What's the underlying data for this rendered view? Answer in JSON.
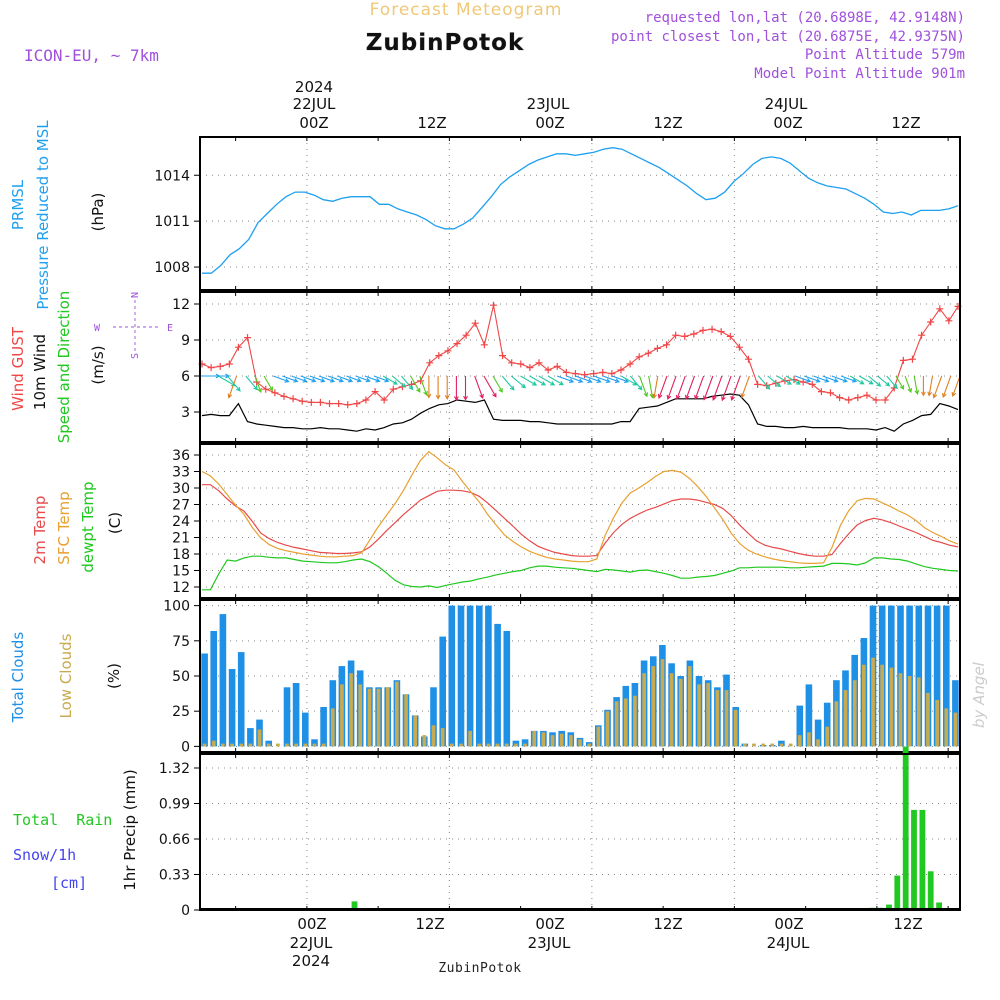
{
  "header": {
    "subtitle": "Forecast Meteogram",
    "station": "ZubinPotok",
    "model": "ICON-EU, ~ 7km",
    "info": [
      "requested lon,lat (20.6898E, 42.9148N)",
      "point closest lon,lat (20.6875E, 42.9375N)",
      "Point Altitude 579m",
      "Model Point Altitude 901m"
    ],
    "watermark": "by Angel",
    "footer_name": "ZubinPotok"
  },
  "time_axis": {
    "top_year": "2024",
    "dates": [
      "22JUL",
      "23JUL",
      "24JUL"
    ],
    "hour_labels": [
      "00Z",
      "12Z",
      "00Z",
      "12Z",
      "00Z",
      "12Z"
    ],
    "bottom_year": "2024"
  },
  "panel_labels": {
    "pressure": [
      "PRMSL",
      "Pressure Reduced to MSL",
      "(hPa)"
    ],
    "wind": [
      "Wind GUST",
      "10m Wind",
      "Speed and Direction",
      "(m/s)"
    ],
    "compass": [
      "N",
      "E",
      "S",
      "W"
    ],
    "temp": [
      "2m Temp",
      "SFC Temp",
      "dewpt Temp",
      "(C)"
    ],
    "clouds": [
      "Total Clouds",
      "Low Clouds",
      "(%)"
    ],
    "precip": [
      "Total  Rain",
      "Snow/1h",
      "[cm]",
      "1hr Precip (mm)"
    ]
  },
  "colors": {
    "pressure": "#1ea0f0",
    "gust": "#f04646",
    "wind": "#000000",
    "t2m": "#e84a4a",
    "sfc": "#e8a030",
    "dew": "#20c820",
    "total_clouds": "#1e90e6",
    "low_clouds": "#c8aa50",
    "rain": "#22c822",
    "title": "#f0c878",
    "info": "#a050dc",
    "snow": "#4444ee"
  },
  "chart_data": [
    {
      "type": "line",
      "name": "pressure",
      "title": "PRMSL Pressure Reduced to MSL",
      "ylabel": "(hPa)",
      "ylim": [
        1006.5,
        1016.5
      ],
      "yticks": [
        1008,
        1011,
        1014
      ],
      "x_start_hour": -9,
      "x_end_hour": 55,
      "values": [
        1007.6,
        1007.6,
        1008.1,
        1008.8,
        1009.2,
        1009.8,
        1010.9,
        1011.5,
        1012.1,
        1012.6,
        1012.9,
        1012.9,
        1012.7,
        1012.4,
        1012.3,
        1012.5,
        1012.6,
        1012.6,
        1012.6,
        1012.1,
        1012.1,
        1011.8,
        1011.6,
        1011.4,
        1011.1,
        1010.7,
        1010.5,
        1010.5,
        1010.8,
        1011.2,
        1011.9,
        1012.6,
        1013.4,
        1013.9,
        1014.3,
        1014.7,
        1015.0,
        1015.2,
        1015.4,
        1015.4,
        1015.3,
        1015.4,
        1015.5,
        1015.7,
        1015.8,
        1015.7,
        1015.4,
        1015.1,
        1014.8,
        1014.5,
        1014.1,
        1013.7,
        1013.3,
        1012.8,
        1012.4,
        1012.5,
        1012.9,
        1013.6,
        1014.1,
        1014.7,
        1015.1,
        1015.2,
        1015.1,
        1014.8,
        1014.3,
        1013.8,
        1013.5,
        1013.3,
        1013.2,
        1013.1,
        1012.8,
        1012.5,
        1012.1,
        1011.6,
        1011.5,
        1011.6,
        1011.4,
        1011.7,
        1011.7,
        1011.7,
        1011.8,
        1012.0
      ]
    },
    {
      "type": "line",
      "name": "wind",
      "ylabel": "(m/s)",
      "ylim": [
        0.5,
        13
      ],
      "yticks": [
        3,
        6,
        9,
        12
      ],
      "x_start_hour": -9,
      "x_end_hour": 55,
      "series": [
        {
          "name": "Wind GUST",
          "values": [
            7.0,
            6.7,
            6.8,
            7.0,
            8.4,
            9.2,
            5.5,
            4.9,
            4.6,
            4.3,
            4.1,
            3.9,
            3.8,
            3.8,
            3.7,
            3.7,
            3.6,
            3.7,
            4.0,
            4.7,
            4.0,
            4.9,
            5.1,
            5.3,
            5.6,
            7.1,
            7.7,
            8.1,
            8.7,
            9.4,
            10.4,
            8.6,
            11.9,
            7.7,
            7.1,
            7.0,
            6.7,
            7.1,
            6.5,
            6.8,
            6.3,
            6.2,
            6.1,
            6.2,
            6.3,
            6.2,
            6.5,
            7.0,
            7.6,
            7.9,
            8.3,
            8.6,
            9.4,
            9.3,
            9.5,
            9.8,
            9.9,
            9.7,
            9.3,
            8.4,
            7.4,
            5.3,
            5.2,
            5.4,
            5.6,
            5.7,
            5.5,
            5.3,
            4.7,
            4.6,
            4.2,
            4.0,
            4.2,
            4.4,
            4.0,
            4.0,
            5.0,
            7.3,
            7.4,
            9.4,
            10.5,
            11.6,
            10.6,
            11.8
          ]
        },
        {
          "name": "10m Wind",
          "values": [
            2.7,
            2.8,
            2.7,
            2.7,
            3.7,
            2.2,
            2.0,
            1.9,
            1.8,
            1.7,
            1.7,
            1.6,
            1.6,
            1.7,
            1.6,
            1.6,
            1.5,
            1.4,
            1.6,
            1.5,
            1.7,
            2.0,
            2.1,
            2.4,
            2.9,
            3.3,
            3.6,
            3.7,
            4.0,
            3.9,
            3.8,
            4.0,
            2.4,
            2.3,
            2.3,
            2.3,
            2.2,
            2.2,
            2.1,
            2.0,
            2.0,
            2.0,
            2.0,
            2.0,
            2.0,
            2.0,
            2.2,
            2.2,
            3.3,
            3.4,
            3.5,
            3.8,
            4.1,
            4.1,
            4.1,
            4.1,
            4.3,
            4.4,
            4.5,
            4.4,
            3.6,
            2.0,
            1.8,
            1.8,
            1.7,
            1.7,
            1.8,
            1.7,
            1.7,
            1.7,
            1.7,
            1.6,
            1.6,
            1.6,
            1.5,
            1.7,
            1.4,
            2.0,
            2.3,
            2.7,
            2.8,
            3.7,
            3.5,
            3.2
          ]
        }
      ],
      "wind_dir_deg": [
        270,
        270,
        300,
        320,
        20,
        320,
        340,
        330,
        290,
        290,
        290,
        290,
        290,
        290,
        290,
        290,
        290,
        290,
        290,
        290,
        300,
        310,
        320,
        330,
        340,
        0,
        0,
        0,
        0,
        0,
        340,
        330,
        330,
        320,
        310,
        300,
        300,
        300,
        300,
        290,
        290,
        290,
        290,
        290,
        290,
        290,
        300,
        320,
        340,
        350,
        10,
        20,
        20,
        20,
        20,
        20,
        20,
        20,
        20,
        20,
        20,
        320,
        310,
        300,
        300,
        290,
        290,
        290,
        290,
        290,
        290,
        300,
        300,
        310,
        310,
        320,
        330,
        340,
        350,
        0,
        10,
        20,
        20,
        20
      ]
    },
    {
      "type": "line",
      "name": "temperature",
      "ylabel": "(C)",
      "ylim": [
        10,
        38
      ],
      "yticks": [
        12,
        15,
        18,
        21,
        24,
        27,
        30,
        33,
        36
      ],
      "x_start_hour": -9,
      "x_end_hour": 55,
      "series": [
        {
          "name": "2m Temp",
          "values": [
            30.6,
            30.6,
            29.5,
            28.0,
            26.7,
            25.8,
            23.9,
            21.8,
            20.8,
            20.1,
            19.6,
            19.2,
            18.9,
            18.6,
            18.3,
            18.2,
            18.1,
            18.1,
            18.2,
            18.4,
            19.3,
            20.7,
            22.3,
            23.7,
            25.2,
            26.5,
            27.8,
            28.6,
            29.4,
            29.6,
            29.6,
            29.5,
            29.2,
            28.5,
            27.3,
            25.9,
            24.5,
            23.1,
            21.6,
            20.4,
            19.4,
            18.8,
            18.3,
            18.0,
            17.7,
            17.6,
            17.6,
            17.7,
            20.0,
            21.9,
            23.4,
            24.5,
            25.3,
            26.0,
            26.5,
            27.1,
            27.7,
            28.0,
            28.0,
            27.8,
            27.4,
            27.0,
            26.3,
            25.0,
            23.3,
            21.8,
            20.4,
            19.6,
            19.2,
            18.9,
            18.5,
            18.1,
            17.8,
            17.6,
            17.6,
            17.9,
            19.9,
            21.7,
            23.3,
            24.1,
            24.5,
            24.2,
            23.7,
            23.1,
            22.5,
            21.9,
            21.2,
            20.5,
            20.1,
            19.6,
            19.3
          ]
        },
        {
          "name": "SFC Temp",
          "values": [
            33.0,
            32.2,
            30.7,
            28.8,
            26.9,
            25.2,
            22.8,
            20.9,
            19.7,
            19.0,
            18.6,
            18.3,
            18.0,
            17.8,
            17.6,
            17.5,
            17.5,
            17.6,
            17.7,
            18.2,
            20.6,
            23.0,
            25.1,
            27.2,
            29.6,
            32.4,
            35.0,
            36.6,
            35.5,
            34.2,
            33.3,
            31.2,
            29.3,
            27.5,
            25.2,
            23.3,
            21.5,
            20.3,
            19.3,
            18.5,
            17.9,
            17.4,
            17.1,
            16.9,
            16.7,
            16.6,
            16.6,
            17.1,
            21.4,
            24.6,
            27.3,
            29.1,
            30.0,
            31.0,
            32.1,
            33.0,
            33.2,
            32.9,
            31.8,
            30.3,
            28.5,
            26.4,
            24.3,
            21.8,
            19.9,
            18.7,
            18.0,
            17.5,
            17.1,
            16.8,
            16.6,
            16.4,
            16.3,
            16.3,
            16.4,
            19.2,
            23.2,
            25.9,
            27.7,
            28.1,
            28.0,
            27.3,
            26.6,
            25.8,
            25.1,
            24.1,
            22.8,
            21.9,
            21.2,
            20.4,
            19.8
          ]
        },
        {
          "name": "dewpt Temp",
          "values": [
            11.5,
            11.5,
            14.4,
            16.9,
            16.7,
            17.3,
            17.6,
            17.6,
            17.4,
            17.3,
            17.3,
            17.0,
            16.7,
            16.6,
            16.5,
            16.4,
            16.4,
            16.6,
            16.9,
            17.1,
            16.6,
            15.7,
            14.5,
            13.2,
            12.4,
            12.1,
            12.0,
            12.2,
            11.9,
            12.3,
            12.6,
            12.9,
            13.1,
            13.5,
            13.8,
            14.2,
            14.5,
            14.8,
            15.0,
            15.5,
            15.8,
            15.8,
            15.6,
            15.5,
            15.4,
            15.2,
            15.0,
            14.8,
            15.2,
            15.1,
            14.9,
            14.7,
            15.0,
            15.1,
            14.8,
            14.5,
            14.1,
            13.6,
            13.6,
            13.8,
            13.9,
            14.1,
            14.5,
            14.9,
            15.5,
            15.5,
            15.6,
            15.6,
            15.6,
            15.6,
            15.5,
            15.5,
            15.6,
            15.7,
            15.8,
            16.3,
            16.3,
            16.2,
            16.0,
            16.4,
            17.3,
            17.3,
            17.1,
            17.0,
            16.7,
            16.2,
            15.7,
            15.4,
            15.2,
            15.0,
            14.9
          ]
        }
      ]
    },
    {
      "type": "bar",
      "name": "clouds",
      "ylabel": "(%)",
      "ylim": [
        -4,
        104
      ],
      "yticks": [
        0,
        25,
        50,
        75,
        100
      ],
      "x_start_hour": -9,
      "x_end_hour": 55,
      "series": [
        {
          "name": "Total Clouds",
          "values": [
            66,
            82,
            94,
            55,
            67,
            13,
            19,
            4,
            0,
            42,
            45,
            24,
            5,
            28,
            47,
            57,
            61,
            54,
            42,
            42,
            42,
            47,
            37,
            22,
            7,
            42,
            78,
            100,
            100,
            100,
            100,
            100,
            87,
            82,
            4,
            5,
            11,
            11,
            10,
            11,
            10,
            6,
            3,
            15,
            26,
            35,
            43,
            45,
            61,
            64,
            72,
            59,
            50,
            61,
            50,
            47,
            42,
            51,
            28,
            2,
            0,
            1,
            1,
            4,
            0,
            29,
            44,
            19,
            31,
            47,
            54,
            65,
            77,
            100,
            100,
            100,
            100,
            100,
            100,
            100,
            100,
            100,
            47
          ]
        },
        {
          "name": "Low Clouds",
          "values": [
            2,
            4,
            2,
            2,
            2,
            2,
            12,
            2,
            2,
            2,
            2,
            2,
            2,
            2,
            27,
            44,
            52,
            44,
            41,
            41,
            42,
            46,
            37,
            22,
            8,
            15,
            13,
            2,
            2,
            11,
            2,
            2,
            2,
            2,
            2,
            2,
            11,
            10,
            8,
            9,
            8,
            5,
            2,
            14,
            25,
            32,
            34,
            36,
            52,
            57,
            62,
            52,
            48,
            57,
            44,
            45,
            40,
            40,
            26,
            2,
            2,
            2,
            2,
            2,
            2,
            8,
            10,
            5,
            14,
            32,
            40,
            47,
            58,
            63,
            58,
            56,
            52,
            50,
            49,
            38,
            33,
            27,
            24
          ]
        }
      ]
    },
    {
      "type": "bar",
      "name": "precipitation",
      "ylabel": "1hr Precip (mm)",
      "ylim": [
        0,
        1.45
      ],
      "yticks": [
        0,
        0.33,
        0.66,
        0.99,
        1.32
      ],
      "ytick_labels": [
        "0",
        "0.33",
        "0.66",
        "0.99",
        "1.32"
      ],
      "x_start_hour": -9,
      "x_end_hour": 55,
      "series": [
        {
          "name": "Total Rain",
          "values": [
            0,
            0,
            0,
            0,
            0,
            0,
            0,
            0,
            0,
            0,
            0,
            0,
            0,
            0,
            0,
            0,
            0,
            0,
            0.08,
            0,
            0,
            0,
            0,
            0,
            0,
            0,
            0,
            0,
            0,
            0,
            0,
            0,
            0,
            0,
            0,
            0,
            0,
            0,
            0,
            0,
            0,
            0,
            0,
            0,
            0,
            0,
            0,
            0,
            0,
            0,
            0,
            0,
            0,
            0,
            0,
            0,
            0,
            0,
            0,
            0,
            0,
            0,
            0,
            0,
            0,
            0,
            0,
            0,
            0,
            0,
            0,
            0,
            0,
            0,
            0,
            0,
            0,
            0,
            0,
            0,
            0.02,
            0.02,
            0.05,
            0.32,
            1.52,
            0.93,
            0.93,
            0.36,
            0.07,
            0,
            0
          ]
        }
      ]
    }
  ]
}
